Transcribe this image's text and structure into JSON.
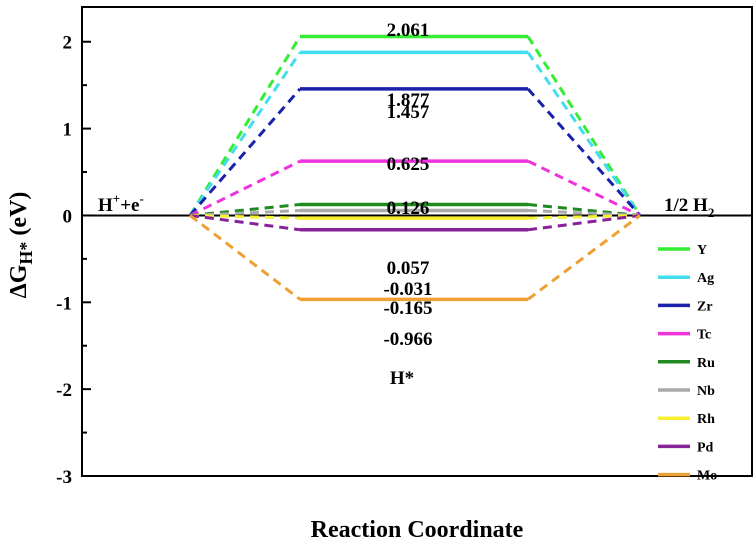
{
  "chart_data": {
    "type": "line",
    "ylabel": "ΔG",
    "ylabel_sub": "H*",
    "ylabel_unit": " (eV)",
    "xlabel": "Reaction Coordinate",
    "ylim": [
      -3,
      2.4
    ],
    "yticks": [
      "-3",
      "-2",
      "-1",
      "0",
      "1",
      "2"
    ],
    "grid": false,
    "legend_position": "bottom-right",
    "states": {
      "initial": {
        "main": "H",
        "sup1": "+",
        "mid": "+e",
        "sup2": "-"
      },
      "intermediate": "H*",
      "final": {
        "main": "1/2 H",
        "sub": "2"
      }
    },
    "series": [
      {
        "name": "Y",
        "value": 2.061,
        "label": "2.061",
        "color": "#33ee33"
      },
      {
        "name": "Ag",
        "value": 1.877,
        "label": "1.877",
        "color": "#44ddee"
      },
      {
        "name": "Zr",
        "value": 1.457,
        "label": "1.457",
        "color": "#1a22aa"
      },
      {
        "name": "Tc",
        "value": 0.625,
        "label": "0.625",
        "color": "#ee33dd"
      },
      {
        "name": "Ru",
        "value": 0.126,
        "label": "0.126",
        "color": "#1f8a1f"
      },
      {
        "name": "Nb",
        "value": 0.057,
        "label": "0.057",
        "color": "#aaaaaa"
      },
      {
        "name": "Rh",
        "value": -0.031,
        "label": "-0.031",
        "color": "#f5f033"
      },
      {
        "name": "Pd",
        "value": -0.165,
        "label": "-0.165",
        "color": "#882299"
      },
      {
        "name": "Mo",
        "value": -0.966,
        "label": "-0.966",
        "color": "#eea033"
      }
    ]
  }
}
